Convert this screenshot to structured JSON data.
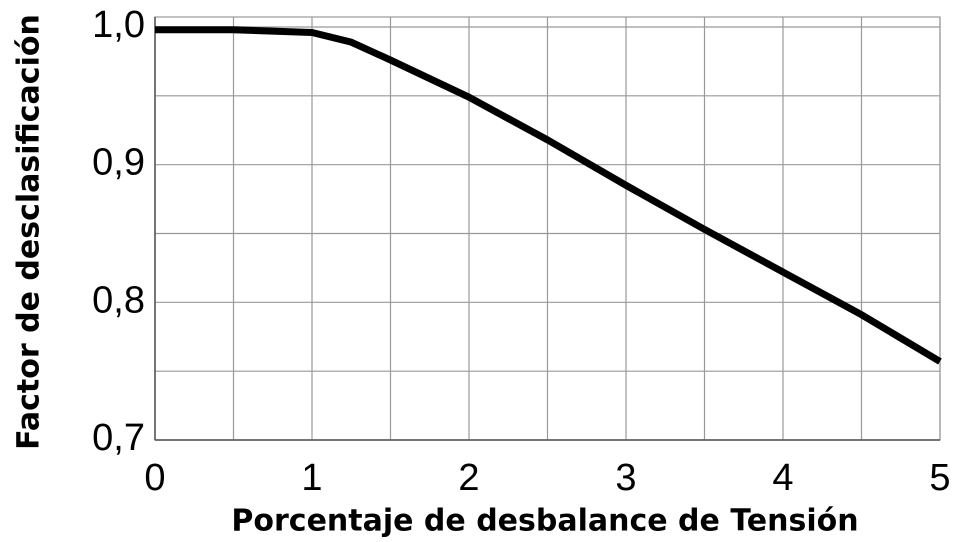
{
  "chart_data": {
    "type": "line",
    "xlabel": "Porcentaje de desbalance de Tensión",
    "ylabel": "Factor de desclasificación",
    "x": [
      0,
      0.5,
      1,
      1.25,
      1.5,
      2,
      2.5,
      3,
      3.5,
      4,
      4.5,
      5
    ],
    "series": [
      {
        "color": "#000000",
        "values": [
          0.998,
          0.998,
          0.996,
          0.989,
          0.976,
          0.949,
          0.918,
          0.885,
          0.853,
          0.822,
          0.791,
          0.757
        ]
      }
    ],
    "xlim": [
      0,
      5
    ],
    "xticks": [
      0,
      1,
      2,
      3,
      4,
      5
    ],
    "ylim": [
      0.7,
      1.0
    ],
    "yticks": [
      {
        "value": 0.7,
        "label": "0,7"
      },
      {
        "value": 0.8,
        "label": "0,8"
      },
      {
        "value": 0.9,
        "label": "0,9"
      },
      {
        "value": 1.0,
        "label": "1,0"
      }
    ],
    "grid": true
  }
}
